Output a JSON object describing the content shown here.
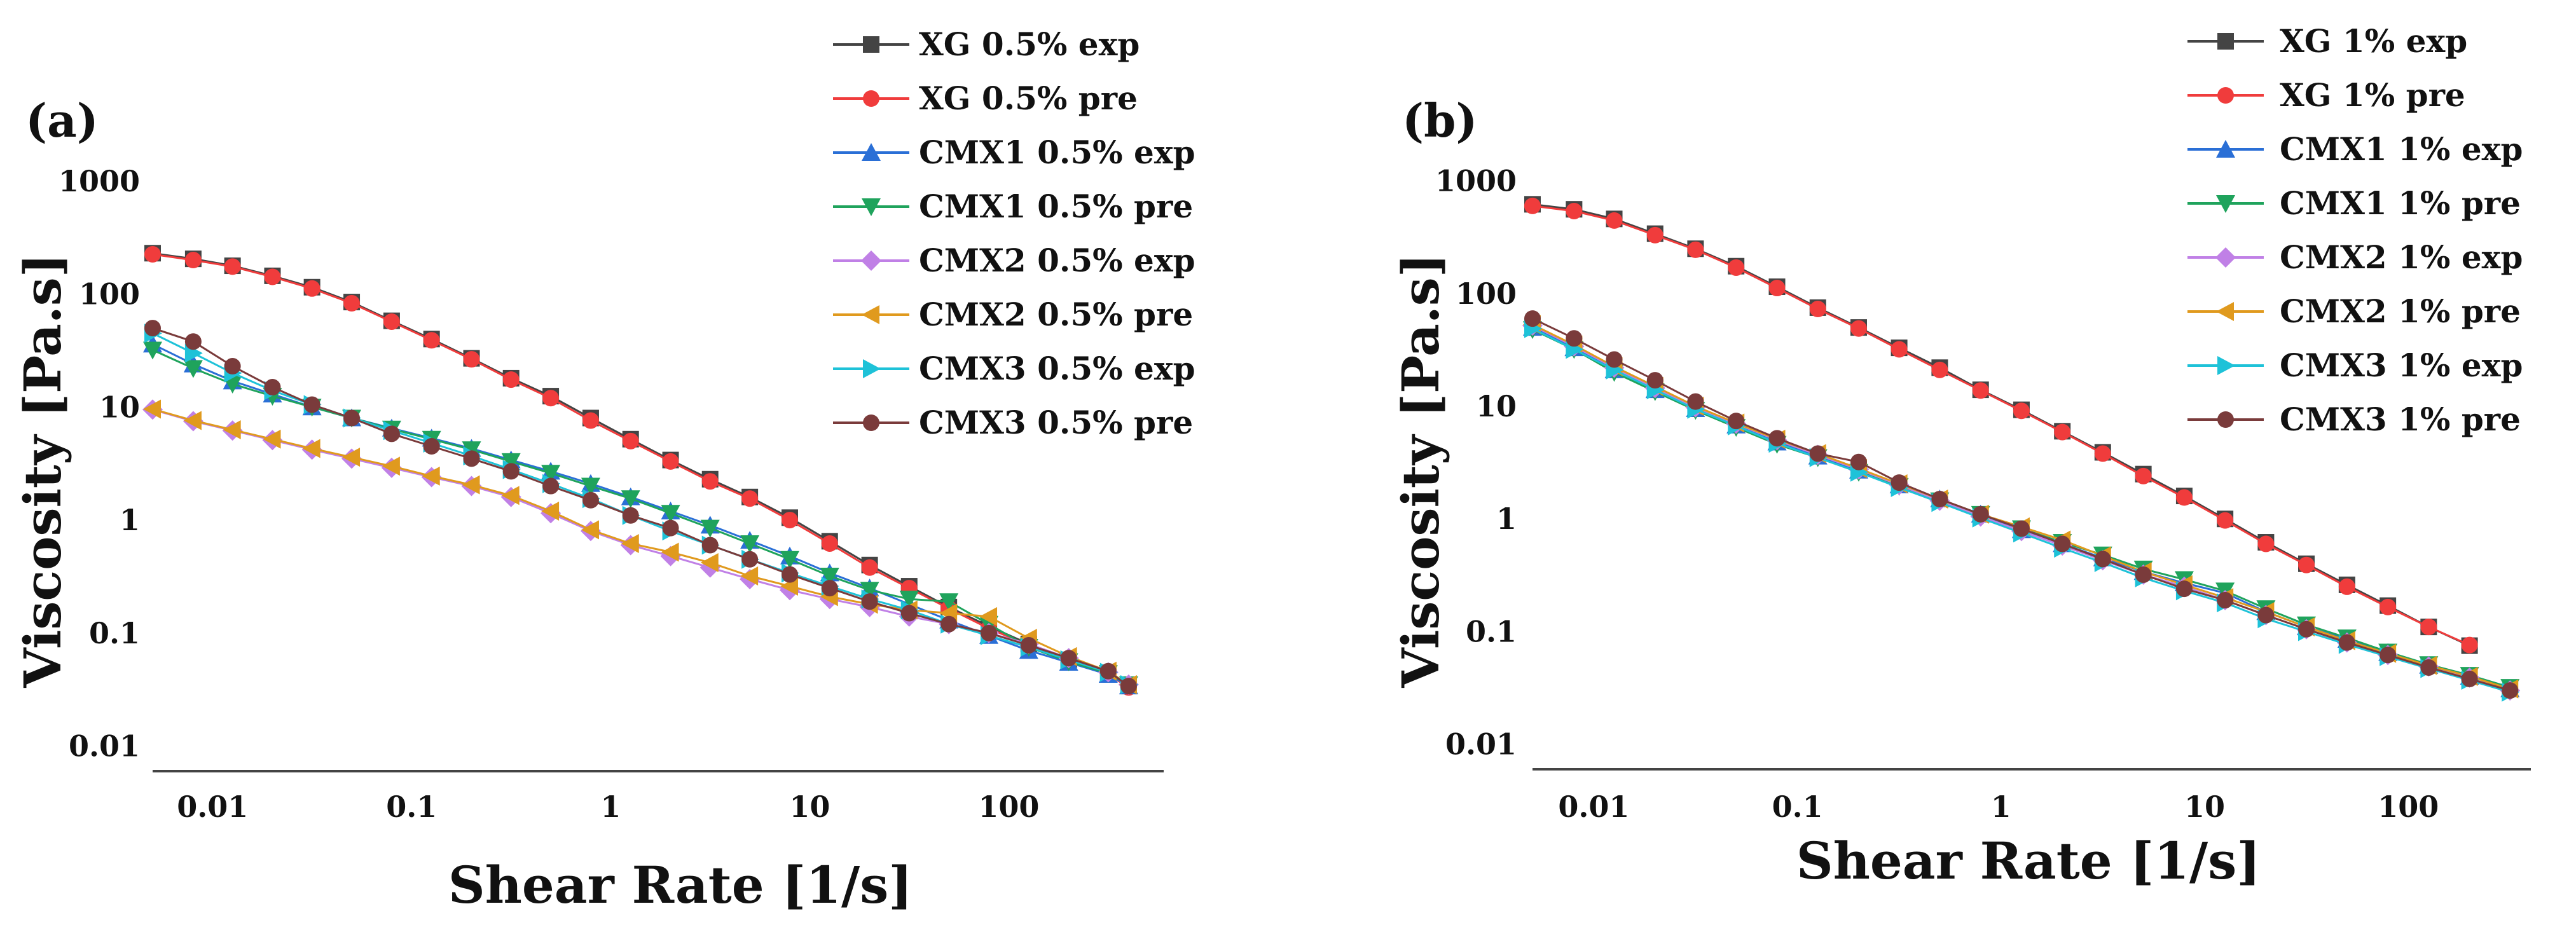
{
  "chart_data": [
    {
      "type": "line",
      "panel_label": "(a)",
      "xlabel": "Shear Rate [1/s]",
      "ylabel": "Viscosity [Pa.s]",
      "x_scale": "log",
      "y_scale": "log",
      "xlim": [
        0.005,
        600
      ],
      "ylim": [
        0.006,
        3000
      ],
      "x_ticks": [
        "0.01",
        "0.1",
        "1",
        "10",
        "100"
      ],
      "y_ticks": [
        "1000",
        "100",
        "10",
        "1",
        "0.1",
        "0.01"
      ],
      "grid": false,
      "legend_position": "top-right",
      "x": [
        0.005,
        0.008,
        0.0126,
        0.02,
        0.0316,
        0.05,
        0.0794,
        0.126,
        0.2,
        0.316,
        0.5,
        0.794,
        1.26,
        2,
        3.16,
        5,
        7.94,
        12.6,
        20,
        31.6,
        50,
        79.4,
        126,
        200,
        316,
        400
      ],
      "series": [
        {
          "name": "XG 0.5% exp",
          "color": "#444444",
          "marker": "square",
          "values": [
            230,
            205,
            178,
            145,
            115,
            85,
            58,
            40,
            27,
            18,
            12.5,
            8,
            5.2,
            3.4,
            2.3,
            1.6,
            1.05,
            0.65,
            0.4,
            0.26,
            0.17,
            0.115,
            0.08,
            0.058,
            0.044,
            0.034
          ]
        },
        {
          "name": "XG 0.5% pre",
          "color": "#f03c3c",
          "marker": "circle",
          "values": [
            225,
            200,
            175,
            142,
            112,
            83,
            57,
            39,
            26.5,
            17.5,
            12,
            7.6,
            5,
            3.3,
            2.2,
            1.55,
            1,
            0.62,
            0.38,
            0.25,
            0.165,
            0.11,
            0.078,
            0.056,
            0.043,
            0.033
          ]
        },
        {
          "name": "CMX1 0.5% exp",
          "color": "#2a6fd6",
          "marker": "triangle-up",
          "values": [
            36,
            24,
            17,
            13,
            10,
            8,
            6.5,
            5.3,
            4.3,
            3.4,
            2.7,
            2.1,
            1.6,
            1.2,
            0.9,
            0.66,
            0.48,
            0.34,
            0.25,
            0.18,
            0.13,
            0.095,
            0.07,
            0.055,
            0.043,
            0.034
          ]
        },
        {
          "name": "CMX1 0.5% pre",
          "color": "#1fa35c",
          "marker": "triangle-down",
          "values": [
            32,
            22,
            16,
            12.5,
            10,
            8,
            6.4,
            5.2,
            4.2,
            3.3,
            2.6,
            2,
            1.55,
            1.15,
            0.85,
            0.62,
            0.45,
            0.32,
            0.24,
            0.2,
            0.19,
            0.12,
            0.075,
            0.056,
            0.044,
            0.035
          ]
        },
        {
          "name": "CMX2 0.5% exp",
          "color": "#c080e6",
          "marker": "diamond",
          "values": [
            9.5,
            7.5,
            6.2,
            5.1,
            4.2,
            3.5,
            2.9,
            2.4,
            2,
            1.6,
            1.15,
            0.8,
            0.6,
            0.48,
            0.38,
            0.3,
            0.24,
            0.2,
            0.17,
            0.14,
            0.12,
            0.1,
            0.08,
            0.06,
            0.045,
            0.035
          ]
        },
        {
          "name": "CMX2 0.5% pre",
          "color": "#e09a1e",
          "marker": "triangle-left",
          "values": [
            9.6,
            7.6,
            6.3,
            5.2,
            4.3,
            3.6,
            3,
            2.45,
            2.05,
            1.65,
            1.2,
            0.82,
            0.62,
            0.52,
            0.42,
            0.32,
            0.26,
            0.21,
            0.18,
            0.16,
            0.15,
            0.14,
            0.09,
            0.062,
            0.046,
            0.035
          ]
        },
        {
          "name": "CMX3 0.5% exp",
          "color": "#1ec2d8",
          "marker": "triangle-right",
          "values": [
            45,
            30,
            20,
            14,
            10.5,
            8,
            6.2,
            4.8,
            3.7,
            2.8,
            2.1,
            1.55,
            1.1,
            0.8,
            0.6,
            0.45,
            0.34,
            0.26,
            0.2,
            0.16,
            0.12,
            0.095,
            0.075,
            0.058,
            0.045,
            0.035
          ]
        },
        {
          "name": "CMX3 0.5% pre",
          "color": "#7a3b3b",
          "marker": "circle",
          "values": [
            50,
            38,
            23,
            15,
            10.5,
            8,
            5.8,
            4.5,
            3.5,
            2.7,
            2,
            1.5,
            1.1,
            0.85,
            0.6,
            0.45,
            0.33,
            0.25,
            0.19,
            0.15,
            0.12,
            0.1,
            0.078,
            0.06,
            0.046,
            0.034
          ]
        }
      ]
    },
    {
      "type": "line",
      "panel_label": "(b)",
      "xlabel": "Shear Rate [1/s]",
      "ylabel": "Viscosity [Pa.s]",
      "x_scale": "log",
      "y_scale": "log",
      "xlim": [
        0.005,
        400
      ],
      "ylim": [
        0.006,
        3000
      ],
      "x_ticks": [
        "0.01",
        "0.1",
        "1",
        "10",
        "100"
      ],
      "y_ticks": [
        "1000",
        "100",
        "10",
        "1",
        "0.1",
        "0.01"
      ],
      "grid": false,
      "legend_position": "top-right",
      "x": [
        0.005,
        0.008,
        0.0126,
        0.02,
        0.0316,
        0.05,
        0.0794,
        0.126,
        0.2,
        0.316,
        0.5,
        0.794,
        1.26,
        2,
        3.16,
        5,
        7.94,
        12.6,
        20,
        31.6,
        50,
        79.4,
        126,
        200,
        316
      ],
      "series": [
        {
          "name": "XG 1% exp",
          "color": "#444444",
          "marker": "square",
          "values": [
            620,
            560,
            460,
            340,
            250,
            175,
            115,
            75,
            50,
            33,
            22,
            14,
            9.3,
            6,
            3.9,
            2.5,
            1.6,
            1,
            0.62,
            0.4,
            0.26,
            0.17,
            0.11,
            0.075,
            null
          ]
        },
        {
          "name": "XG 1% pre",
          "color": "#f03c3c",
          "marker": "circle",
          "values": [
            600,
            540,
            445,
            330,
            245,
            170,
            112,
            73,
            49,
            32,
            21,
            13.8,
            9.1,
            5.9,
            3.8,
            2.4,
            1.55,
            0.97,
            0.6,
            0.39,
            0.25,
            0.165,
            0.11,
            0.076,
            null
          ]
        },
        {
          "name": "CMX1 1% exp",
          "color": "#2a6fd6",
          "marker": "triangle-up",
          "values": [
            50,
            33,
            21,
            14,
            9.5,
            6.8,
            4.8,
            3.6,
            2.7,
            2,
            1.5,
            1.1,
            0.8,
            0.6,
            0.45,
            0.34,
            0.27,
            0.22,
            0.15,
            0.11,
            0.085,
            0.065,
            0.05,
            0.04,
            0.031
          ]
        },
        {
          "name": "CMX1 1% pre",
          "color": "#1fa35c",
          "marker": "triangle-down",
          "values": [
            48,
            32,
            20,
            13.5,
            9.2,
            6.5,
            4.6,
            3.5,
            2.6,
            1.95,
            1.45,
            1.1,
            0.82,
            0.62,
            0.48,
            0.36,
            0.29,
            0.23,
            0.16,
            0.115,
            0.088,
            0.066,
            0.051,
            0.041,
            0.032
          ]
        },
        {
          "name": "CMX2 1% exp",
          "color": "#c080e6",
          "marker": "diamond",
          "values": [
            52,
            34,
            22,
            14.5,
            9.8,
            7,
            5,
            3.7,
            2.75,
            2,
            1.45,
            1.05,
            0.78,
            0.58,
            0.43,
            0.32,
            0.25,
            0.19,
            0.14,
            0.105,
            0.08,
            0.062,
            0.049,
            0.039,
            0.03
          ]
        },
        {
          "name": "CMX2 1% pre",
          "color": "#e09a1e",
          "marker": "triangle-left",
          "values": [
            53,
            35,
            22.5,
            15,
            10,
            7.1,
            5.1,
            3.8,
            2.8,
            2.05,
            1.5,
            1.1,
            0.85,
            0.65,
            0.47,
            0.34,
            0.26,
            0.2,
            0.15,
            0.11,
            0.083,
            0.064,
            0.05,
            0.04,
            0.031
          ]
        },
        {
          "name": "CMX3 1% exp",
          "color": "#1ec2d8",
          "marker": "triangle-right",
          "values": [
            49,
            32,
            21,
            14,
            9.4,
            6.7,
            4.7,
            3.5,
            2.6,
            1.9,
            1.4,
            1.02,
            0.75,
            0.55,
            0.41,
            0.3,
            0.23,
            0.18,
            0.13,
            0.1,
            0.077,
            0.06,
            0.047,
            0.037,
            0.029
          ]
        },
        {
          "name": "CMX3 1% pre",
          "color": "#7a3b3b",
          "marker": "circle",
          "values": [
            60,
            40,
            26,
            17,
            11,
            7.4,
            5.2,
            3.8,
            3.2,
            2.1,
            1.5,
            1.1,
            0.82,
            0.6,
            0.44,
            0.32,
            0.24,
            0.19,
            0.14,
            0.105,
            0.08,
            0.062,
            0.048,
            0.038,
            0.03
          ]
        }
      ]
    }
  ]
}
